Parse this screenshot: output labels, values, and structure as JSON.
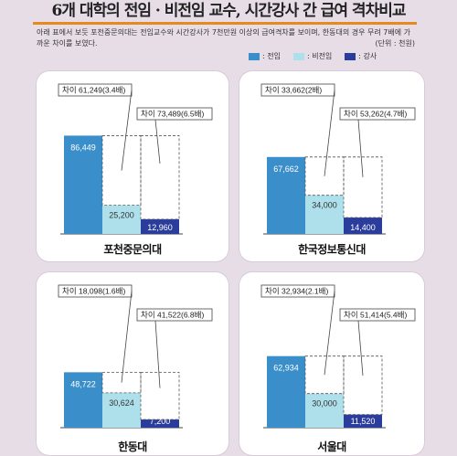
{
  "title": "6개 대학의 전임 · 비전임 교수, 시간강사 간 급여 격차비교",
  "description": "아래 표에서 보듯 포천중문의대는 전임교수와 시간강사가 7천만원 이상의 급여격차를 보이며, 한동대의 경우 무려 7배에 가까운 차이를 보였다.",
  "unit": "(단위 : 천원)",
  "colors": {
    "full_time": "#3a8ec9",
    "non_full_time": "#aee0ec",
    "lecturer": "#2a3d9c",
    "accent": "#e58a1f"
  },
  "legend": [
    {
      "key": "full_time",
      "label": ": 전임"
    },
    {
      "key": "non_full_time",
      "label": ": 비전임"
    },
    {
      "key": "lecturer",
      "label": ": 강사"
    }
  ],
  "chart_data": [
    {
      "type": "bar",
      "xlabel": "포천중문의대",
      "categories": [
        ": 전임",
        ": 비전임",
        ": 강사"
      ],
      "values": [
        86449,
        25200,
        12960
      ],
      "value_labels": [
        "86,449",
        "25,200",
        "12,960"
      ],
      "annotations": [
        "차이 61,249(3.4배)",
        "차이 73,489(6.5배)"
      ],
      "ylim": [
        0,
        90000
      ]
    },
    {
      "type": "bar",
      "xlabel": "한국정보통신대",
      "categories": [
        ": 전임",
        ": 비전임",
        ": 강사"
      ],
      "values": [
        67662,
        34000,
        14400
      ],
      "value_labels": [
        "67,662",
        "34,000",
        "14,400"
      ],
      "annotations": [
        "차이 33,662(2배)",
        "차이 53,262(4.7배)"
      ],
      "ylim": [
        0,
        90000
      ]
    },
    {
      "type": "bar",
      "xlabel": "한동대",
      "categories": [
        ": 전임",
        ": 비전임",
        ": 강사"
      ],
      "values": [
        48722,
        30624,
        7200
      ],
      "value_labels": [
        "48,722",
        "30,624",
        "7,200"
      ],
      "annotations": [
        "차이 18,098(1.6배)",
        "차이 41,522(6.8배)"
      ],
      "ylim": [
        0,
        90000
      ]
    },
    {
      "type": "bar",
      "xlabel": "서울대",
      "categories": [
        ": 전임",
        ": 비전임",
        ": 강사"
      ],
      "values": [
        62934,
        30000,
        11520
      ],
      "value_labels": [
        "62,934",
        "30,000",
        "11,520"
      ],
      "annotations": [
        "차이 32,934(2.1배)",
        "차이 51,414(5.4배)"
      ],
      "ylim": [
        0,
        90000
      ]
    }
  ]
}
